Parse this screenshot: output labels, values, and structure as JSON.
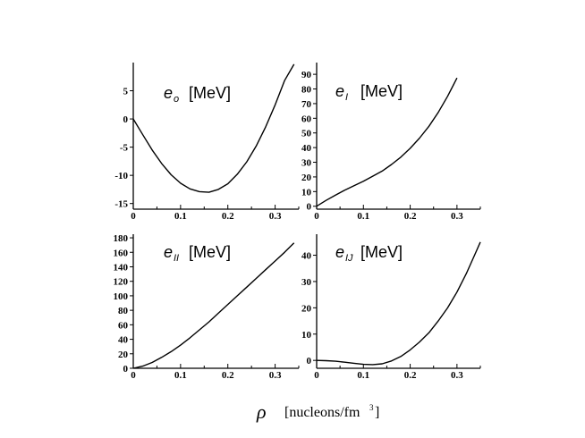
{
  "xlabel": {
    "symbol": "ρ",
    "text": "[nucleons/fm",
    "sup": "3",
    "close": "]"
  },
  "chart_data": [
    {
      "type": "line",
      "title": {
        "main": "e",
        "sub": "o",
        "unit": "[MeV]"
      },
      "xlim": [
        0,
        0.35
      ],
      "ylim": [
        -16,
        10
      ],
      "xticks": [
        "0",
        "0.1",
        "0.2",
        "0.3"
      ],
      "yticks": [
        5,
        0,
        -5,
        -10,
        -15
      ],
      "ytick_labels": [
        "5",
        "0",
        "-5",
        "-10",
        "-15"
      ],
      "series": [
        {
          "x": [
            0,
            0.02,
            0.04,
            0.06,
            0.08,
            0.1,
            0.12,
            0.14,
            0.16,
            0.18,
            0.2,
            0.22,
            0.24,
            0.26,
            0.28,
            0.3,
            0.32,
            0.34
          ],
          "y": [
            0,
            -2.8,
            -5.5,
            -7.9,
            -9.9,
            -11.4,
            -12.4,
            -12.9,
            -13.0,
            -12.5,
            -11.5,
            -9.8,
            -7.6,
            -4.8,
            -1.4,
            2.5,
            6.8,
            9.7
          ]
        }
      ]
    },
    {
      "type": "line",
      "title": {
        "main": "e",
        "sub": "I",
        "unit": "[MeV]"
      },
      "xlim": [
        0,
        0.35
      ],
      "ylim": [
        -2,
        98
      ],
      "xticks": [
        "0",
        "0.1",
        "0.2",
        "0.3"
      ],
      "yticks": [
        90,
        80,
        70,
        60,
        50,
        40,
        30,
        20,
        10,
        0
      ],
      "ytick_labels": [
        "90",
        "80",
        "70",
        "60",
        "50",
        "40",
        "30",
        "20",
        "10",
        "0"
      ],
      "series": [
        {
          "x": [
            0,
            0.02,
            0.04,
            0.06,
            0.08,
            0.1,
            0.12,
            0.14,
            0.16,
            0.18,
            0.2,
            0.22,
            0.24,
            0.26,
            0.28,
            0.3
          ],
          "y": [
            0,
            4,
            7.5,
            11,
            14,
            17,
            20.5,
            24,
            28.5,
            33.5,
            39.5,
            46.5,
            54.5,
            64,
            75,
            87.5
          ]
        }
      ]
    },
    {
      "type": "line",
      "title": {
        "main": "e",
        "sub": "II",
        "unit": "[MeV]"
      },
      "xlim": [
        0,
        0.35
      ],
      "ylim": [
        0,
        185
      ],
      "xticks": [
        "0",
        "0.1",
        "0.2",
        "0.3"
      ],
      "yticks": [
        180,
        160,
        140,
        120,
        100,
        80,
        60,
        40,
        20,
        0
      ],
      "ytick_labels": [
        "180",
        "160",
        "140",
        "120",
        "100",
        "80",
        "60",
        "40",
        "20",
        "0"
      ],
      "series": [
        {
          "x": [
            0,
            0.02,
            0.04,
            0.06,
            0.08,
            0.1,
            0.12,
            0.14,
            0.16,
            0.18,
            0.2,
            0.22,
            0.24,
            0.26,
            0.28,
            0.3,
            0.32,
            0.34
          ],
          "y": [
            0,
            3,
            8,
            15,
            23,
            32,
            42,
            53,
            64,
            76,
            88,
            100,
            112,
            124,
            136,
            148,
            160,
            173
          ]
        }
      ]
    },
    {
      "type": "line",
      "title": {
        "main": "e",
        "sub": "IJ",
        "unit": "[MeV]"
      },
      "xlim": [
        0,
        0.35
      ],
      "ylim": [
        -3,
        48
      ],
      "xticks": [
        "0",
        "0.1",
        "0.2",
        "0.3"
      ],
      "yticks": [
        40,
        30,
        20,
        10,
        0
      ],
      "ytick_labels": [
        "40",
        "30",
        "20",
        "10",
        "0"
      ],
      "series": [
        {
          "x": [
            0,
            0.02,
            0.04,
            0.06,
            0.08,
            0.1,
            0.12,
            0.14,
            0.16,
            0.18,
            0.2,
            0.22,
            0.24,
            0.26,
            0.28,
            0.3,
            0.32,
            0.34,
            0.35
          ],
          "y": [
            0,
            -0.1,
            -0.3,
            -0.7,
            -1.1,
            -1.5,
            -1.6,
            -1.3,
            -0.2,
            1.5,
            4,
            7,
            10.5,
            15,
            20,
            26,
            33,
            41,
            45
          ]
        }
      ]
    }
  ]
}
